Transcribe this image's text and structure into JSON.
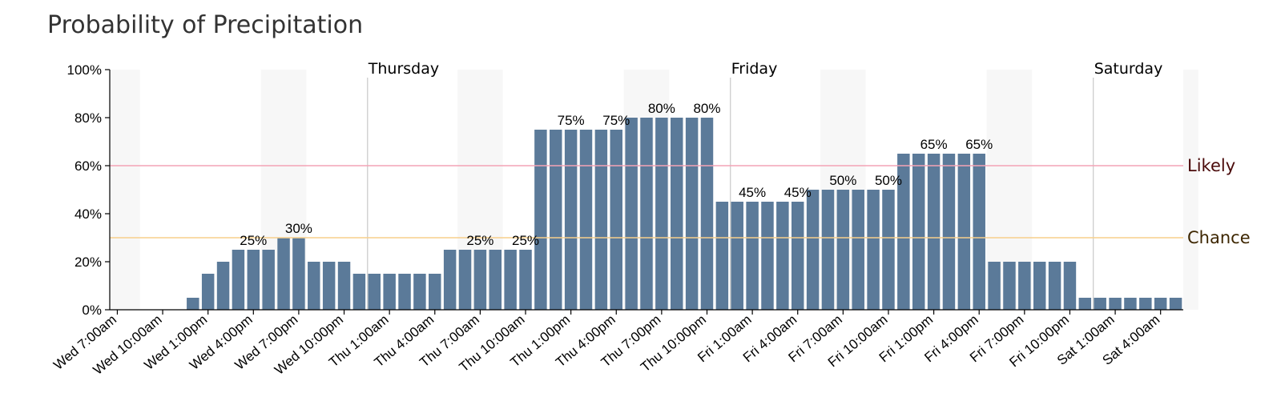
{
  "chart_data": {
    "type": "bar",
    "title": "Probability of Precipitation",
    "ylim": [
      0,
      100
    ],
    "y_ticks": [
      "0%",
      "20%",
      "40%",
      "60%",
      "80%",
      "100%"
    ],
    "x_tick_labels": [
      "Wed 7:00am",
      "Wed 10:00am",
      "Wed 1:00pm",
      "Wed 4:00pm",
      "Wed 7:00pm",
      "Wed 10:00pm",
      "Thu 1:00am",
      "Thu 4:00am",
      "Thu 7:00am",
      "Thu 10:00am",
      "Thu 1:00pm",
      "Thu 4:00pm",
      "Thu 7:00pm",
      "Thu 10:00pm",
      "Fri 1:00am",
      "Fri 4:00am",
      "Fri 7:00am",
      "Fri 10:00am",
      "Fri 1:00pm",
      "Fri 4:00pm",
      "Fri 7:00pm",
      "Fri 10:00pm",
      "Sat 1:00am",
      "Sat 4:00am"
    ],
    "start_hour_label": "Wed 7:00am",
    "values": [
      0,
      0,
      0,
      0,
      0,
      5,
      15,
      20,
      25,
      25,
      25,
      30,
      30,
      20,
      20,
      20,
      15,
      15,
      15,
      15,
      15,
      15,
      25,
      25,
      25,
      25,
      25,
      25,
      75,
      75,
      75,
      75,
      75,
      75,
      80,
      80,
      80,
      80,
      80,
      80,
      45,
      45,
      45,
      45,
      45,
      45,
      50,
      50,
      50,
      50,
      50,
      50,
      65,
      65,
      65,
      65,
      65,
      65,
      20,
      20,
      20,
      20,
      20,
      20,
      5,
      5,
      5,
      5,
      5,
      5,
      5
    ],
    "bar_labels": [
      {
        "index": 9,
        "text": "25%"
      },
      {
        "index": 12,
        "text": "30%"
      },
      {
        "index": 24,
        "text": "25%"
      },
      {
        "index": 27,
        "text": "25%"
      },
      {
        "index": 30,
        "text": "75%"
      },
      {
        "index": 33,
        "text": "75%"
      },
      {
        "index": 36,
        "text": "80%"
      },
      {
        "index": 39,
        "text": "80%"
      },
      {
        "index": 42,
        "text": "45%"
      },
      {
        "index": 45,
        "text": "45%"
      },
      {
        "index": 48,
        "text": "50%"
      },
      {
        "index": 51,
        "text": "50%"
      },
      {
        "index": 54,
        "text": "65%"
      },
      {
        "index": 57,
        "text": "65%"
      }
    ],
    "day_markers": [
      {
        "label": "Thursday",
        "index": 17
      },
      {
        "label": "Friday",
        "index": 41
      },
      {
        "label": "Saturday",
        "index": 65
      }
    ],
    "thresholds": [
      {
        "label": "Likely",
        "value": 60,
        "line_color": "#f4a3b5",
        "text_color": "#4a0a0a"
      },
      {
        "label": "Chance",
        "value": 30,
        "line_color": "#f7cf8c",
        "text_color": "#3d2600"
      }
    ],
    "bar_color": "#5b7a99",
    "night_band_color": "#f7f7f7"
  }
}
